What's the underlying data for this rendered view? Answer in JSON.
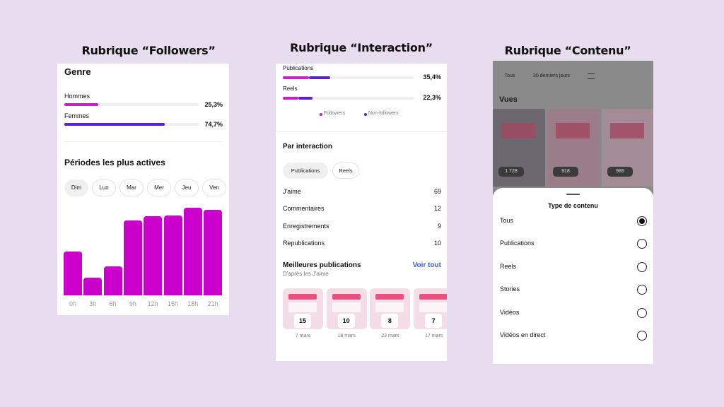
{
  "titles": [
    "Rubrique “Followers”",
    "Rubrique “Interaction”",
    "Rubrique “Contenu”"
  ],
  "followers": {
    "genre_title": "Genre",
    "genre": [
      {
        "label": "Hommes",
        "value": 25.3,
        "value_label": "25,3%",
        "color": "#c91ec9"
      },
      {
        "label": "Femmes",
        "value": 74.7,
        "value_label": "74,7%",
        "color": "#5a1fd6"
      }
    ],
    "periods_title": "Périodes les plus actives",
    "days": [
      "Dim",
      "Lun",
      "Mar",
      "Mer",
      "Jeu",
      "Ven"
    ],
    "selected_day": 0,
    "chart_data": {
      "type": "bar",
      "categories": [
        "0h",
        "3h",
        "6h",
        "9h",
        "12h",
        "15h",
        "18h",
        "21h"
      ],
      "values": [
        62,
        25,
        41,
        106,
        112,
        113,
        124,
        121
      ],
      "color": "#cc00cc"
    }
  },
  "interaction": {
    "reach": [
      {
        "label": "Publications",
        "value": 35.4,
        "value_label": "35,4%",
        "segments": [
          19.5,
          15.9
        ]
      },
      {
        "label": "Reels",
        "value": 22.3,
        "value_label": "22,3%",
        "segments": [
          11.6,
          10.7
        ]
      }
    ],
    "legend": [
      {
        "name": "Followers",
        "color": "#c91ec9"
      },
      {
        "name": "Non-followers",
        "color": "#5a1fd6"
      }
    ],
    "by_title": "Par interaction",
    "tabs": [
      "Publications",
      "Reels"
    ],
    "metrics": [
      {
        "label": "J'aime",
        "value": 69
      },
      {
        "label": "Commentaires",
        "value": 12
      },
      {
        "label": "Enregistrements",
        "value": 9
      },
      {
        "label": "Republications",
        "value": 10
      }
    ],
    "best_title": "Meilleures publications",
    "best_subtitle": "D'après les J'aime",
    "see_all": "Voir tout",
    "posts": [
      {
        "count": 15,
        "date": "7 mars"
      },
      {
        "count": 10,
        "date": "18 mars"
      },
      {
        "count": 8,
        "date": "23 mars"
      },
      {
        "count": 7,
        "date": "17 mars"
      }
    ]
  },
  "contenu": {
    "filters": [
      "Tous",
      "30 derniers jours"
    ],
    "views_title": "Vues",
    "views": [
      "1 728",
      "918",
      "986"
    ],
    "sheet_title": "Type de contenu",
    "options": [
      "Tous",
      "Publications",
      "Reels",
      "Stories",
      "Vidéos",
      "Vidéos en direct"
    ],
    "selected": 0
  }
}
